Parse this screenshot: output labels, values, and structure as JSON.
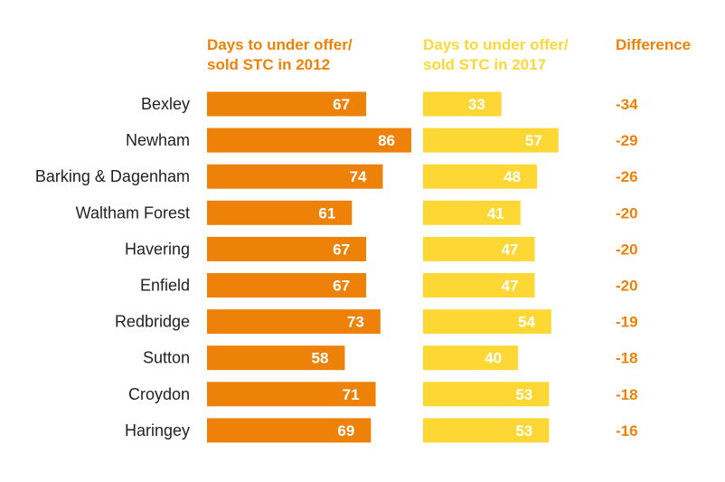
{
  "colors": {
    "series_2012": "#EE8208",
    "series_2017": "#FDD835",
    "difference_text": "#EE8208",
    "header_2012": "#EE8208",
    "header_2017": "#FDD835",
    "header_difference": "#EE8208",
    "category_text": "#222222",
    "bar_value_text": "#FFFFFF"
  },
  "headers": {
    "series_2012": [
      "Days to under offer/",
      "sold STC in 2012"
    ],
    "series_2017": [
      "Days to under offer/",
      "sold STC in 2017"
    ],
    "difference": "Difference"
  },
  "chart_data": {
    "type": "bar",
    "orientation": "horizontal",
    "title": "",
    "xlabel": "",
    "ylabel": "",
    "grid": false,
    "legend": "none",
    "xlim": [
      0,
      86
    ],
    "categories": [
      "Bexley",
      "Newham",
      "Barking & Dagenham",
      "Waltham Forest",
      "Havering",
      "Enfield",
      "Redbridge",
      "Sutton",
      "Croydon",
      "Haringey"
    ],
    "series": [
      {
        "name": "Days to under offer/ sold STC in 2012",
        "values": [
          67,
          86,
          74,
          61,
          67,
          67,
          73,
          58,
          71,
          69
        ]
      },
      {
        "name": "Days to under offer/ sold STC in 2017",
        "values": [
          33,
          57,
          48,
          41,
          47,
          47,
          54,
          40,
          53,
          53
        ]
      }
    ],
    "difference": [
      "-34",
      "-29",
      "-26",
      "-20",
      "-20",
      "-20",
      "-19",
      "-18",
      "-18",
      "-16"
    ]
  }
}
